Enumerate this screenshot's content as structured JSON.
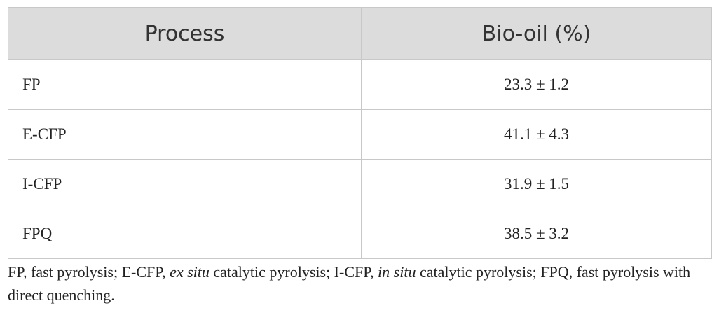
{
  "table": {
    "header": [
      "Process",
      "Bio-oil (%)"
    ],
    "rows": [
      [
        "FP",
        "23.3 ± 1.2"
      ],
      [
        "E-CFP",
        "41.1 ± 4.3"
      ],
      [
        "I-CFP",
        "31.9 ± 1.5"
      ],
      [
        "FPQ",
        "38.5 ± 3.2"
      ]
    ]
  },
  "footnote": [
    "FP, fast pyrolysis; E-CFP, ",
    "ex situ",
    " catalytic pyrolysis; I-CFP, ",
    "in situ",
    " catalytic pyrolysis; FPQ, fast pyrolysis with direct quenching."
  ]
}
